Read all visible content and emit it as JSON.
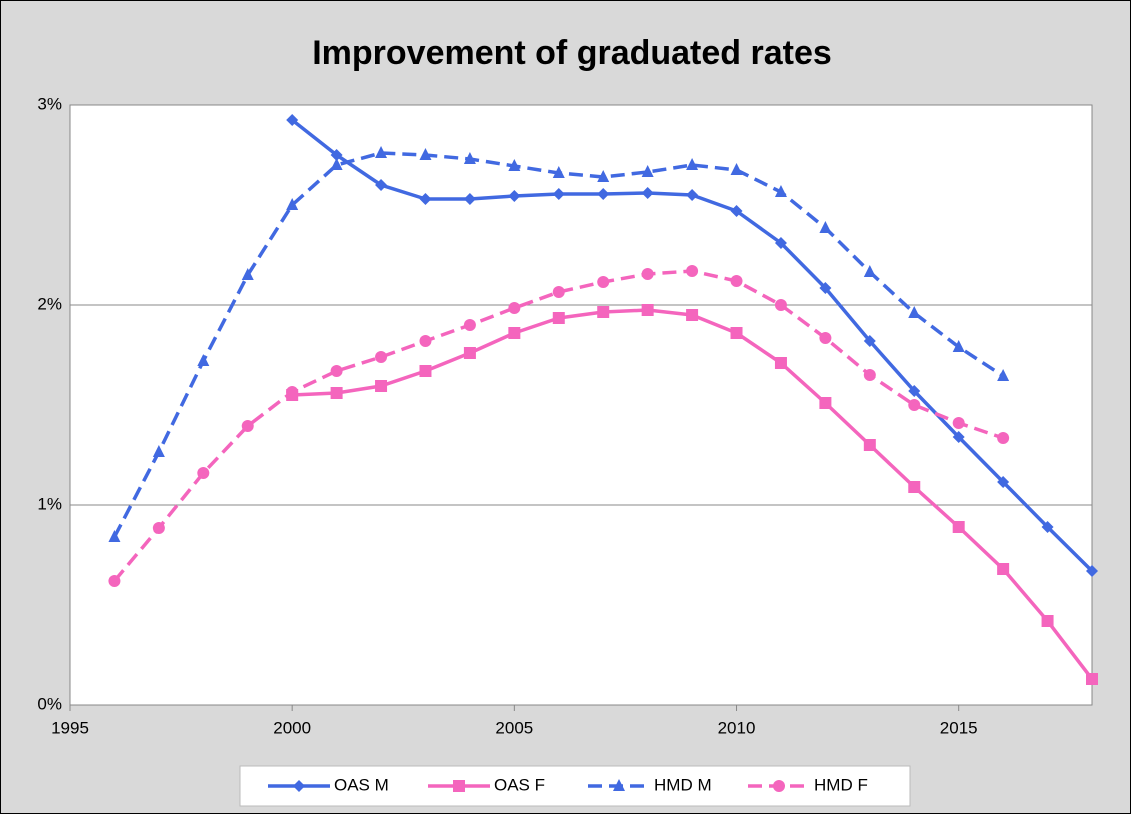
{
  "chart_data": {
    "type": "line",
    "title": "Improvement of graduated rates",
    "x": [
      1996,
      1997,
      1998,
      1999,
      2000,
      2001,
      2002,
      2003,
      2004,
      2005,
      2006,
      2007,
      2008,
      2009,
      2010,
      2011,
      2012,
      2013,
      2014,
      2015,
      2016,
      2017,
      2018
    ],
    "xlim": [
      1995,
      2018
    ],
    "xticks": [
      1995,
      2000,
      2005,
      2010,
      2015
    ],
    "ylim": [
      0,
      3
    ],
    "yticks": [
      {
        "value": 0,
        "label": "0%"
      },
      {
        "value": 1,
        "label": "1%"
      },
      {
        "value": 2,
        "label": "2%"
      },
      {
        "value": 3,
        "label": "3%"
      }
    ],
    "grid": true,
    "legend": "bottom",
    "series": [
      {
        "name": "OAS M",
        "color": "#4169e1",
        "marker": "diamond",
        "line_style": "solid",
        "values": [
          null,
          null,
          null,
          null,
          2.925,
          2.75,
          2.6,
          2.53,
          2.53,
          2.545,
          2.555,
          2.555,
          2.56,
          2.55,
          2.47,
          2.31,
          2.085,
          1.82,
          1.57,
          1.34,
          1.115,
          0.89,
          0.67
        ]
      },
      {
        "name": "OAS F",
        "color": "#f465bd",
        "marker": "square",
        "line_style": "solid",
        "values": [
          null,
          null,
          null,
          null,
          1.55,
          1.56,
          1.595,
          1.67,
          1.76,
          1.86,
          1.935,
          1.965,
          1.975,
          1.95,
          1.86,
          1.71,
          1.51,
          1.3,
          1.09,
          0.89,
          0.68,
          0.42,
          0.13
        ]
      },
      {
        "name": "HMD M",
        "color": "#4169e1",
        "marker": "triangle",
        "line_style": "dashed",
        "values": [
          0.84,
          1.265,
          1.72,
          2.15,
          2.5,
          2.7,
          2.76,
          2.75,
          2.73,
          2.695,
          2.66,
          2.64,
          2.665,
          2.7,
          2.675,
          2.565,
          2.385,
          2.165,
          1.96,
          1.79,
          1.645,
          null,
          null
        ]
      },
      {
        "name": "HMD F",
        "color": "#f465bd",
        "marker": "circle",
        "line_style": "dashed",
        "values": [
          0.62,
          0.885,
          1.16,
          1.395,
          1.565,
          1.67,
          1.74,
          1.82,
          1.9,
          1.985,
          2.065,
          2.115,
          2.155,
          2.17,
          2.12,
          2.0,
          1.835,
          1.65,
          1.5,
          1.41,
          1.335,
          null,
          null
        ]
      }
    ]
  }
}
